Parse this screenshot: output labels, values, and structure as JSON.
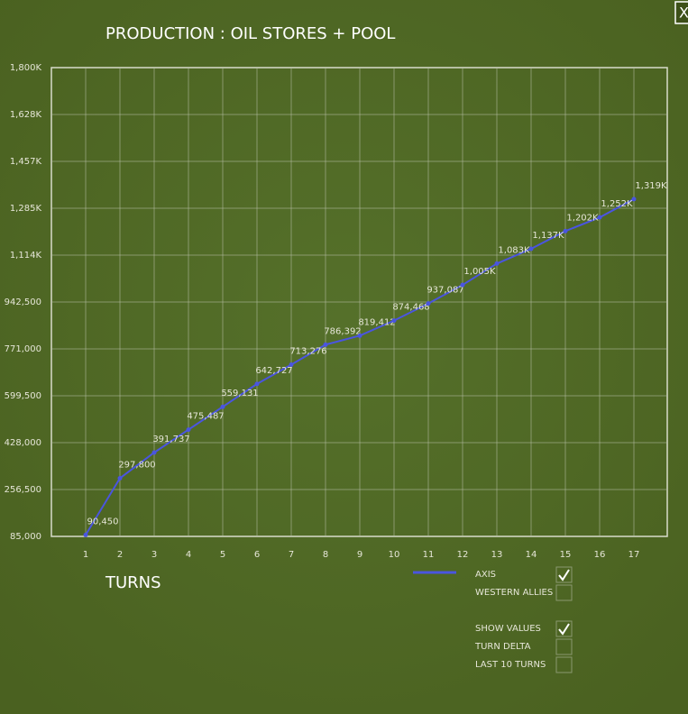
{
  "chart_data": {
    "type": "line",
    "title": "PRODUCTION : OIL STORES + POOL",
    "x_label": "TURNS",
    "categories": [
      "1",
      "2",
      "3",
      "4",
      "5",
      "6",
      "7",
      "8",
      "9",
      "10",
      "11",
      "12",
      "13",
      "14",
      "15",
      "16",
      "17"
    ],
    "series": [
      {
        "name": "AXIS",
        "color": "#4a55e0",
        "checked": true,
        "values": [
          90450,
          297800,
          391737,
          475487,
          559131,
          642727,
          713276,
          786392,
          819412,
          874468,
          937087,
          1005000,
          1083000,
          1137000,
          1202000,
          1252000,
          1319000
        ],
        "value_labels": [
          "90,450",
          "297,800",
          "391,737",
          "475,487",
          "559,131",
          "642,727",
          "713,276",
          "786,392",
          "819,412",
          "874,468",
          "937,087",
          "1,005K",
          "1,083K",
          "1,137K",
          "1,202K",
          "1,252K",
          "1,319K"
        ]
      }
    ],
    "ylim": [
      85000,
      1800000
    ],
    "yticks": [
      {
        "value": 85000,
        "label": "85,000"
      },
      {
        "value": 256500,
        "label": "256,500"
      },
      {
        "value": 428000,
        "label": "428,000"
      },
      {
        "value": 599500,
        "label": "599,500"
      },
      {
        "value": 771000,
        "label": "771,000"
      },
      {
        "value": 942500,
        "label": "942,500"
      },
      {
        "value": 1114000,
        "label": "1,114K"
      },
      {
        "value": 1285500,
        "label": "1,285K"
      },
      {
        "value": 1457000,
        "label": "1,457K"
      },
      {
        "value": 1628500,
        "label": "1,628K"
      },
      {
        "value": 1800000,
        "label": "1,800K"
      }
    ],
    "grid": true,
    "options": [
      {
        "label": "WESTERN ALLIES",
        "checked": false
      },
      {
        "label": "SHOW VALUES",
        "checked": true
      },
      {
        "label": "TURN DELTA",
        "checked": false
      },
      {
        "label": "LAST 10 TURNS",
        "checked": false
      }
    ],
    "close_label": "X"
  }
}
